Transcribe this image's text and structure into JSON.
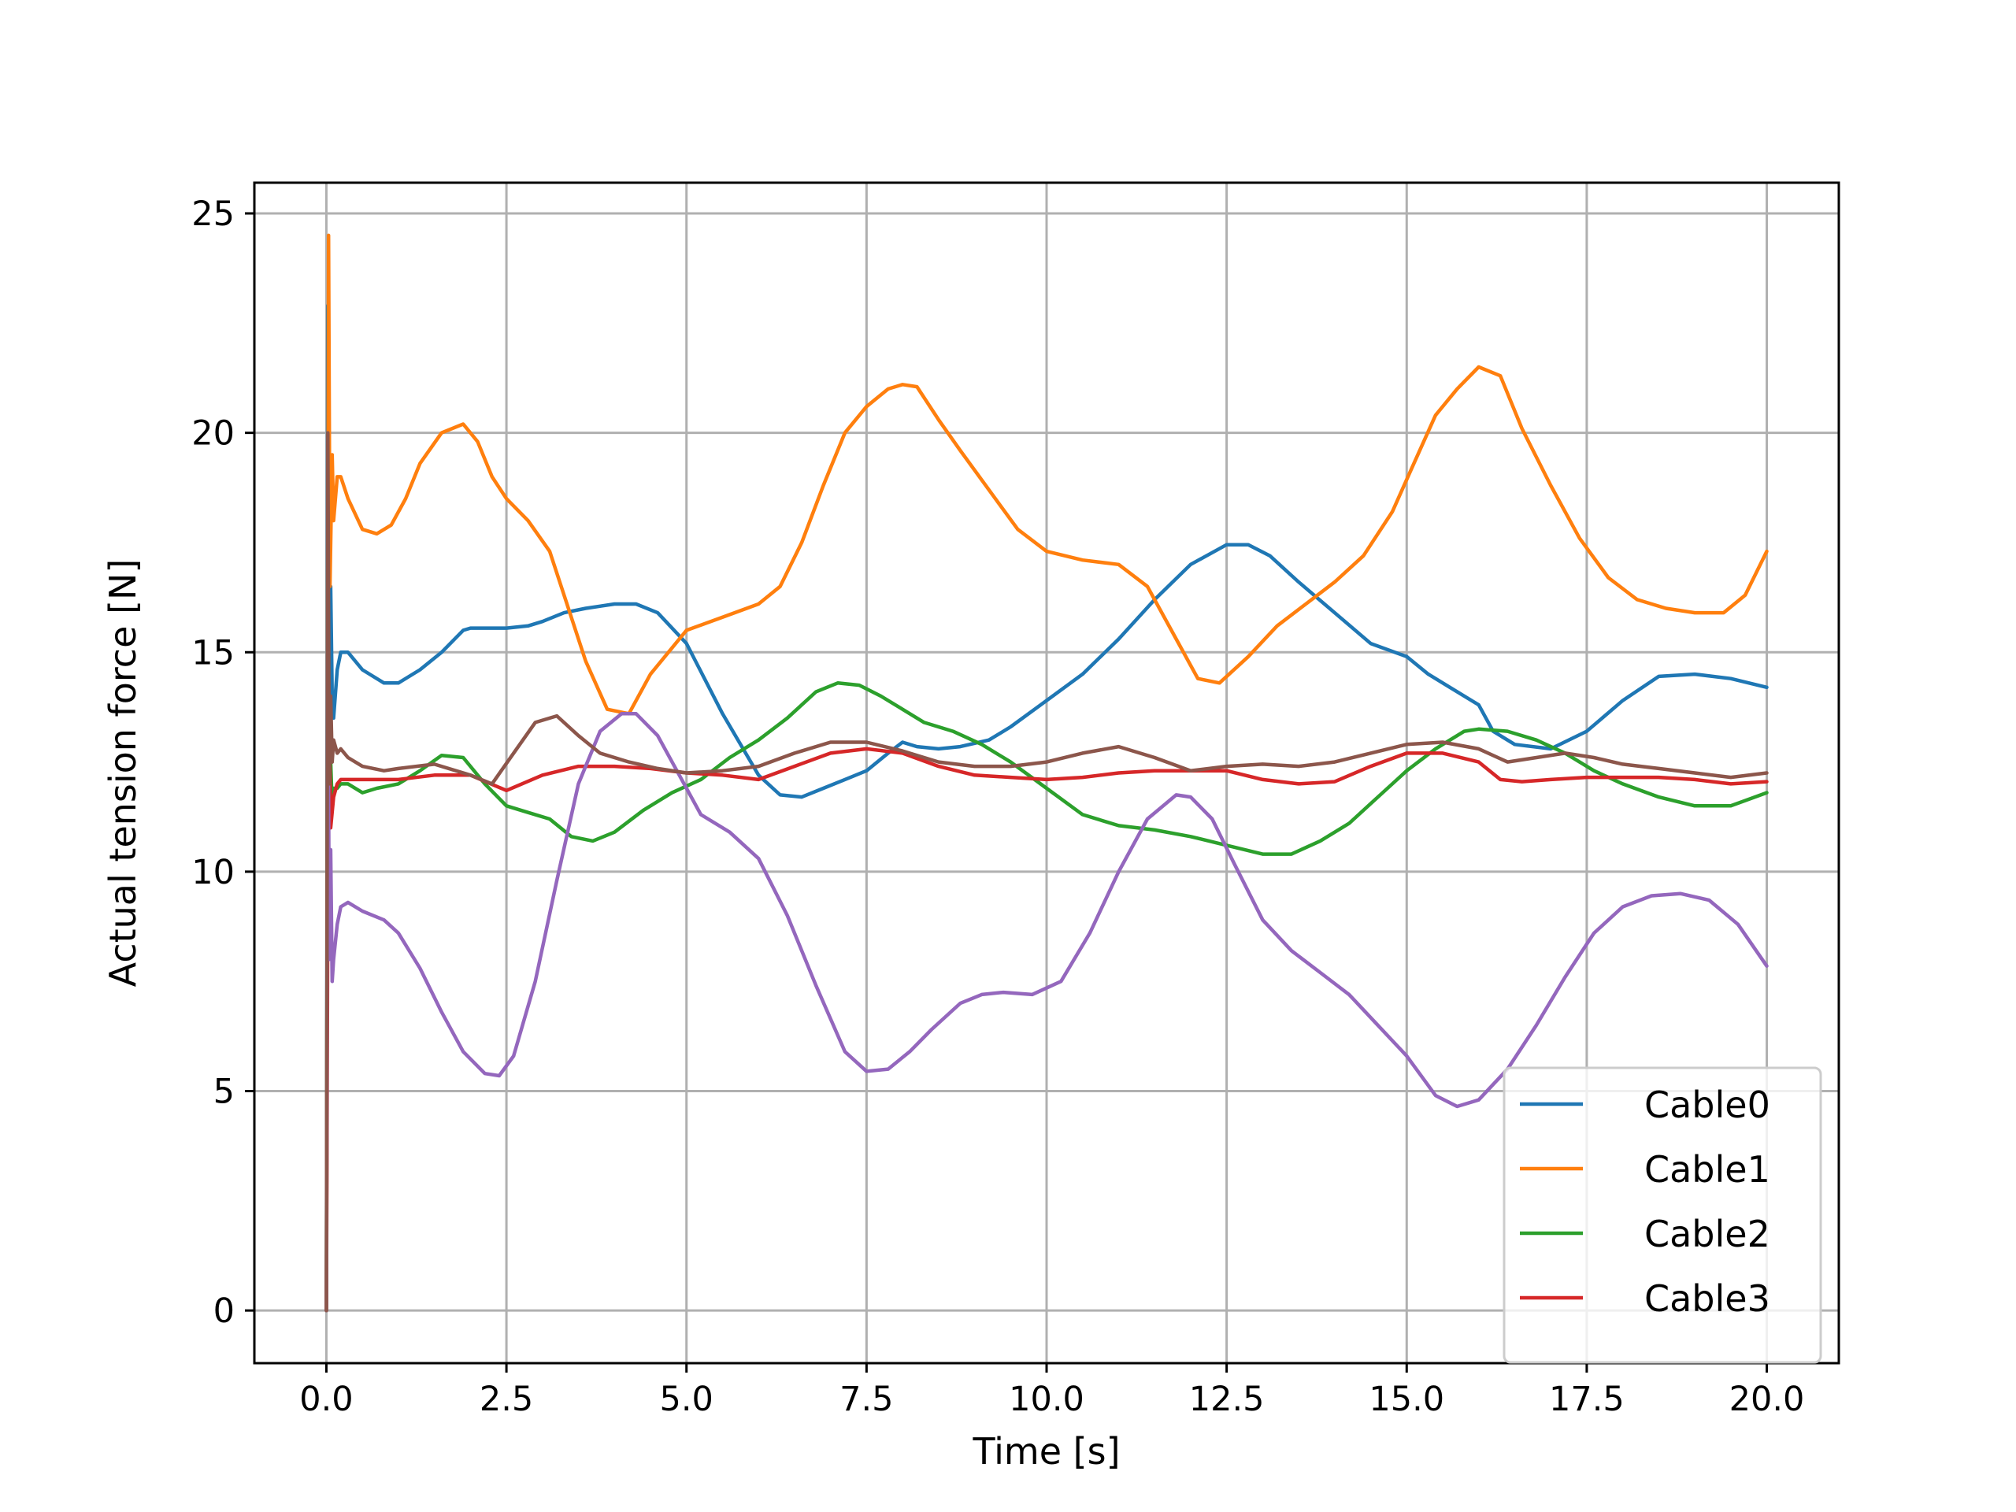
{
  "chart_data": {
    "type": "line",
    "title": "",
    "xlabel": "Time [s]",
    "ylabel": "Actual tension force [N]",
    "xlim": [
      -1.0,
      21.0
    ],
    "ylim": [
      -1.2,
      25.7
    ],
    "xticks": [
      "0.0",
      "2.5",
      "5.0",
      "7.5",
      "10.0",
      "12.5",
      "15.0",
      "17.5",
      "20.0"
    ],
    "yticks": [
      "0",
      "5",
      "10",
      "15",
      "20",
      "25"
    ],
    "grid": true,
    "legend_position": "lower-right",
    "series": [
      {
        "name": "Cable0",
        "color": "#1f77b4",
        "x": [
          0,
          0.02,
          0.04,
          0.06,
          0.08,
          0.1,
          0.15,
          0.2,
          0.3,
          0.5,
          0.8,
          1.0,
          1.3,
          1.6,
          1.9,
          2.0,
          2.2,
          2.5,
          2.8,
          3.0,
          3.3,
          3.6,
          4.0,
          4.3,
          4.6,
          5.0,
          5.5,
          6.0,
          6.3,
          6.6,
          6.9,
          7.2,
          7.5,
          7.8,
          8.0,
          8.2,
          8.5,
          8.8,
          9.2,
          9.5,
          10.0,
          10.5,
          11.0,
          11.5,
          12.0,
          12.5,
          12.8,
          13.1,
          13.5,
          14.0,
          14.5,
          15.0,
          15.3,
          15.6,
          16.0,
          16.2,
          16.5,
          17.0,
          17.5,
          18.0,
          18.5,
          19.0,
          19.5,
          20.0
        ],
        "y": [
          0,
          22.9,
          13.0,
          16.5,
          14.0,
          13.5,
          14.6,
          15.0,
          15.0,
          14.6,
          14.3,
          14.3,
          14.6,
          15.0,
          15.5,
          15.55,
          15.55,
          15.55,
          15.6,
          15.7,
          15.9,
          16.0,
          16.1,
          16.1,
          15.9,
          15.2,
          13.6,
          12.2,
          11.75,
          11.7,
          11.9,
          12.1,
          12.3,
          12.7,
          12.95,
          12.85,
          12.8,
          12.85,
          13.0,
          13.3,
          13.9,
          14.5,
          15.3,
          16.2,
          17.0,
          17.45,
          17.45,
          17.2,
          16.6,
          15.9,
          15.2,
          14.9,
          14.5,
          14.2,
          13.8,
          13.2,
          12.9,
          12.8,
          13.2,
          13.9,
          14.45,
          14.5,
          14.4,
          14.2
        ]
      },
      {
        "name": "Cable1",
        "color": "#ff7f0e",
        "x": [
          0,
          0.03,
          0.05,
          0.08,
          0.1,
          0.15,
          0.2,
          0.3,
          0.5,
          0.7,
          0.9,
          1.1,
          1.3,
          1.6,
          1.9,
          2.1,
          2.3,
          2.5,
          2.8,
          3.1,
          3.3,
          3.6,
          3.9,
          4.2,
          4.5,
          4.8,
          5.0,
          5.5,
          6.0,
          6.3,
          6.6,
          6.9,
          7.2,
          7.5,
          7.8,
          8.0,
          8.2,
          8.5,
          8.8,
          9.2,
          9.6,
          10.0,
          10.5,
          11.0,
          11.4,
          11.8,
          12.1,
          12.4,
          12.8,
          13.2,
          13.6,
          14.0,
          14.4,
          14.8,
          15.1,
          15.4,
          15.7,
          16.0,
          16.3,
          16.6,
          17.0,
          17.4,
          17.8,
          18.2,
          18.6,
          19.0,
          19.4,
          19.7,
          20.0
        ],
        "y": [
          0,
          24.5,
          16.5,
          19.5,
          18.0,
          19.0,
          19.0,
          18.5,
          17.8,
          17.7,
          17.9,
          18.5,
          19.3,
          20.0,
          20.2,
          19.8,
          19.0,
          18.5,
          18.0,
          17.3,
          16.3,
          14.8,
          13.7,
          13.6,
          14.5,
          15.1,
          15.5,
          15.8,
          16.1,
          16.5,
          17.5,
          18.8,
          20.0,
          20.6,
          21.0,
          21.1,
          21.05,
          20.3,
          19.6,
          18.7,
          17.8,
          17.3,
          17.1,
          17.0,
          16.5,
          15.3,
          14.4,
          14.3,
          14.9,
          15.6,
          16.1,
          16.6,
          17.2,
          18.2,
          19.3,
          20.4,
          21.0,
          21.5,
          21.3,
          20.1,
          18.8,
          17.6,
          16.7,
          16.2,
          16.0,
          15.9,
          15.9,
          16.3,
          17.3
        ]
      },
      {
        "name": "Cable2",
        "color": "#2ca02c",
        "x": [
          0,
          0.02,
          0.04,
          0.06,
          0.08,
          0.1,
          0.15,
          0.2,
          0.3,
          0.5,
          0.7,
          1.0,
          1.3,
          1.6,
          1.9,
          2.2,
          2.5,
          2.8,
          3.1,
          3.4,
          3.7,
          4.0,
          4.4,
          4.8,
          5.2,
          5.6,
          6.0,
          6.4,
          6.8,
          7.1,
          7.4,
          7.7,
          8.0,
          8.3,
          8.7,
          9.1,
          9.5,
          10.0,
          10.5,
          11.0,
          11.5,
          12.0,
          12.5,
          13.0,
          13.4,
          13.8,
          14.2,
          14.6,
          15.0,
          15.4,
          15.8,
          16.0,
          16.4,
          16.8,
          17.2,
          17.6,
          18.0,
          18.5,
          19.0,
          19.5,
          20.0
        ],
        "y": [
          0,
          18.0,
          11.0,
          12.5,
          11.5,
          11.9,
          11.9,
          12.0,
          12.0,
          11.8,
          11.9,
          12.0,
          12.3,
          12.65,
          12.6,
          12.0,
          11.5,
          11.35,
          11.2,
          10.8,
          10.7,
          10.9,
          11.4,
          11.8,
          12.1,
          12.6,
          13.0,
          13.5,
          14.1,
          14.3,
          14.25,
          14.0,
          13.7,
          13.4,
          13.2,
          12.9,
          12.5,
          11.9,
          11.3,
          11.05,
          10.95,
          10.8,
          10.6,
          10.4,
          10.4,
          10.7,
          11.1,
          11.7,
          12.3,
          12.8,
          13.2,
          13.25,
          13.2,
          13.0,
          12.7,
          12.3,
          12.0,
          11.7,
          11.5,
          11.5,
          11.8
        ]
      },
      {
        "name": "Cable3",
        "color": "#d62728",
        "x": [
          0,
          0.03,
          0.06,
          0.1,
          0.15,
          0.2,
          0.3,
          0.5,
          0.8,
          1.0,
          1.5,
          2.0,
          2.5,
          3.0,
          3.5,
          4.0,
          4.5,
          5.0,
          5.5,
          6.0,
          6.5,
          7.0,
          7.5,
          8.0,
          8.5,
          9.0,
          9.5,
          10.0,
          10.5,
          11.0,
          11.5,
          12.0,
          12.5,
          13.0,
          13.5,
          14.0,
          14.5,
          15.0,
          15.5,
          16.0,
          16.3,
          16.6,
          17.0,
          17.5,
          18.0,
          18.5,
          19.0,
          19.5,
          20.0
        ],
        "y": [
          0,
          14.5,
          11.0,
          11.7,
          12.0,
          12.1,
          12.1,
          12.1,
          12.1,
          12.1,
          12.2,
          12.2,
          11.85,
          12.2,
          12.4,
          12.4,
          12.35,
          12.25,
          12.2,
          12.1,
          12.4,
          12.7,
          12.8,
          12.7,
          12.4,
          12.2,
          12.15,
          12.1,
          12.15,
          12.25,
          12.3,
          12.3,
          12.3,
          12.1,
          12.0,
          12.05,
          12.4,
          12.7,
          12.7,
          12.5,
          12.1,
          12.05,
          12.1,
          12.15,
          12.15,
          12.15,
          12.1,
          12.0,
          12.05
        ]
      },
      {
        "name": "",
        "color": "#9467bd",
        "x": [
          0,
          0.02,
          0.04,
          0.06,
          0.08,
          0.1,
          0.15,
          0.2,
          0.3,
          0.5,
          0.8,
          1.0,
          1.3,
          1.6,
          1.9,
          2.2,
          2.4,
          2.6,
          2.9,
          3.2,
          3.5,
          3.8,
          4.1,
          4.3,
          4.6,
          4.9,
          5.2,
          5.6,
          6.0,
          6.4,
          6.8,
          7.2,
          7.5,
          7.8,
          8.1,
          8.4,
          8.8,
          9.1,
          9.4,
          9.8,
          10.2,
          10.6,
          11.0,
          11.4,
          11.8,
          12.0,
          12.3,
          12.6,
          13.0,
          13.4,
          13.8,
          14.2,
          14.6,
          15.0,
          15.4,
          15.7,
          16.0,
          16.4,
          16.8,
          17.2,
          17.6,
          18.0,
          18.4,
          18.8,
          19.2,
          19.6,
          20.0
        ],
        "y": [
          0,
          16.0,
          8.0,
          10.5,
          7.5,
          8.0,
          8.8,
          9.2,
          9.3,
          9.1,
          8.9,
          8.6,
          7.8,
          6.8,
          5.9,
          5.4,
          5.35,
          5.8,
          7.5,
          9.8,
          12.0,
          13.2,
          13.6,
          13.6,
          13.1,
          12.2,
          11.3,
          10.9,
          10.3,
          9.0,
          7.4,
          5.9,
          5.45,
          5.5,
          5.9,
          6.4,
          7.0,
          7.2,
          7.25,
          7.2,
          7.5,
          8.6,
          10.0,
          11.2,
          11.75,
          11.7,
          11.2,
          10.2,
          8.9,
          8.2,
          7.7,
          7.2,
          6.5,
          5.8,
          4.9,
          4.65,
          4.8,
          5.5,
          6.5,
          7.6,
          8.6,
          9.2,
          9.45,
          9.5,
          9.35,
          8.8,
          7.85
        ]
      },
      {
        "name": "",
        "color": "#8c564b",
        "x": [
          0,
          0.02,
          0.04,
          0.06,
          0.08,
          0.1,
          0.15,
          0.2,
          0.3,
          0.5,
          0.8,
          1.0,
          1.5,
          2.0,
          2.3,
          2.6,
          2.9,
          3.2,
          3.5,
          3.8,
          4.2,
          4.6,
          5.0,
          5.5,
          6.0,
          6.5,
          7.0,
          7.5,
          8.0,
          8.5,
          9.0,
          9.5,
          10.0,
          10.5,
          11.0,
          11.5,
          12.0,
          12.5,
          13.0,
          13.5,
          14.0,
          14.5,
          15.0,
          15.5,
          16.0,
          16.4,
          16.8,
          17.2,
          17.6,
          18.0,
          18.5,
          19.0,
          19.5,
          20.0
        ],
        "y": [
          0,
          20.0,
          12.0,
          14.0,
          12.5,
          13.0,
          12.7,
          12.8,
          12.6,
          12.4,
          12.3,
          12.35,
          12.45,
          12.2,
          12.0,
          12.7,
          13.4,
          13.55,
          13.1,
          12.7,
          12.5,
          12.35,
          12.25,
          12.3,
          12.4,
          12.7,
          12.95,
          12.95,
          12.75,
          12.5,
          12.4,
          12.4,
          12.5,
          12.7,
          12.85,
          12.6,
          12.3,
          12.4,
          12.45,
          12.4,
          12.5,
          12.7,
          12.9,
          12.95,
          12.8,
          12.5,
          12.6,
          12.7,
          12.6,
          12.45,
          12.35,
          12.25,
          12.15,
          12.25
        ]
      }
    ]
  }
}
